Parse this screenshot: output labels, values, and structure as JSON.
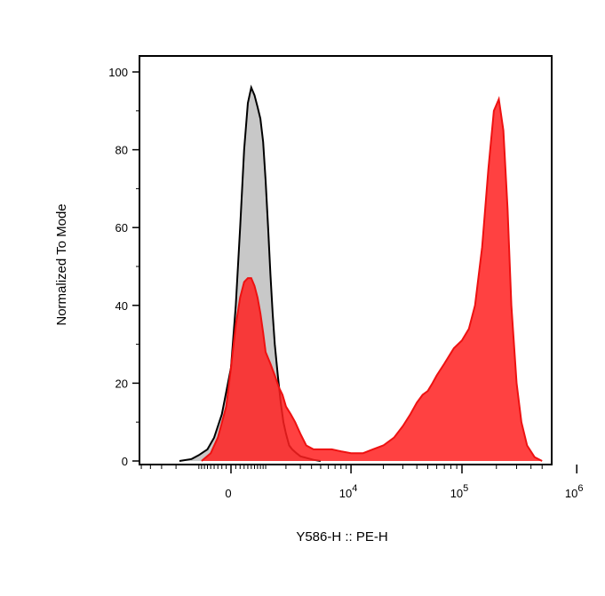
{
  "chart_data": {
    "type": "area",
    "xlabel": "Y586-H :: PE-H",
    "ylabel": "Normalized To Mode",
    "x_scale": "biexponential",
    "ylim": [
      0,
      100
    ],
    "y_ticks": [
      {
        "value": 0,
        "label": "0"
      },
      {
        "value": 20,
        "label": "20"
      },
      {
        "value": 40,
        "label": "40"
      },
      {
        "value": 60,
        "label": "60"
      },
      {
        "value": 80,
        "label": "80"
      },
      {
        "value": 100,
        "label": "100"
      }
    ],
    "x_ticks": [
      {
        "value": 0,
        "base": "0",
        "exp": ""
      },
      {
        "value": 10000,
        "base": "10",
        "exp": "4"
      },
      {
        "value": 100000,
        "base": "10",
        "exp": "5"
      },
      {
        "value": 1000000,
        "base": "10",
        "exp": "6"
      }
    ],
    "grid": false,
    "legend": "none",
    "series": [
      {
        "fill": "#c8c8c8",
        "stroke": "#000000",
        "x": [
          -1800,
          -1200,
          -900,
          -600,
          -400,
          -200,
          0,
          100,
          200,
          300,
          400,
          500,
          600,
          700,
          800,
          900,
          1000,
          1100,
          1200,
          1300,
          1400,
          1550,
          1700,
          1850,
          2000,
          2200,
          2400,
          2700,
          3000,
          3500,
          4200,
          5000
        ],
        "y": [
          0,
          0.5,
          1.5,
          3,
          6,
          12,
          24,
          40,
          60,
          80,
          92,
          96,
          94,
          91,
          88,
          82,
          72,
          60,
          48,
          38,
          30,
          22,
          15,
          10,
          7,
          4,
          3,
          2,
          1.2,
          0.8,
          0.3,
          0
        ]
      },
      {
        "fill": "#ff2020",
        "stroke": "#ee1111",
        "x": [
          -800,
          -500,
          -300,
          -100,
          0,
          100,
          200,
          300,
          400,
          500,
          600,
          700,
          800,
          900,
          1000,
          1200,
          1400,
          1600,
          1800,
          2000,
          2300,
          2600,
          3000,
          3500,
          4200,
          5000,
          6500,
          8000,
          10000,
          13000,
          16000,
          20000,
          25000,
          30000,
          35000,
          40000,
          45000,
          50000,
          55000,
          60000,
          70000,
          85000,
          100000,
          115000,
          130000,
          150000,
          170000,
          190000,
          210000,
          230000,
          250000,
          270000,
          300000,
          330000,
          370000,
          430000,
          500000
        ],
        "y": [
          0,
          2,
          6,
          14,
          24,
          35,
          42,
          46,
          47,
          47,
          45,
          42,
          38,
          33,
          28,
          25,
          22,
          19,
          17,
          14,
          12,
          10,
          7,
          4,
          3,
          3,
          3,
          2.5,
          2,
          2,
          3,
          4,
          6,
          9,
          12,
          15,
          17,
          18,
          20,
          22,
          25,
          29,
          31,
          34,
          40,
          55,
          75,
          90,
          93,
          85,
          65,
          40,
          20,
          10,
          4,
          1,
          0
        ]
      }
    ]
  }
}
